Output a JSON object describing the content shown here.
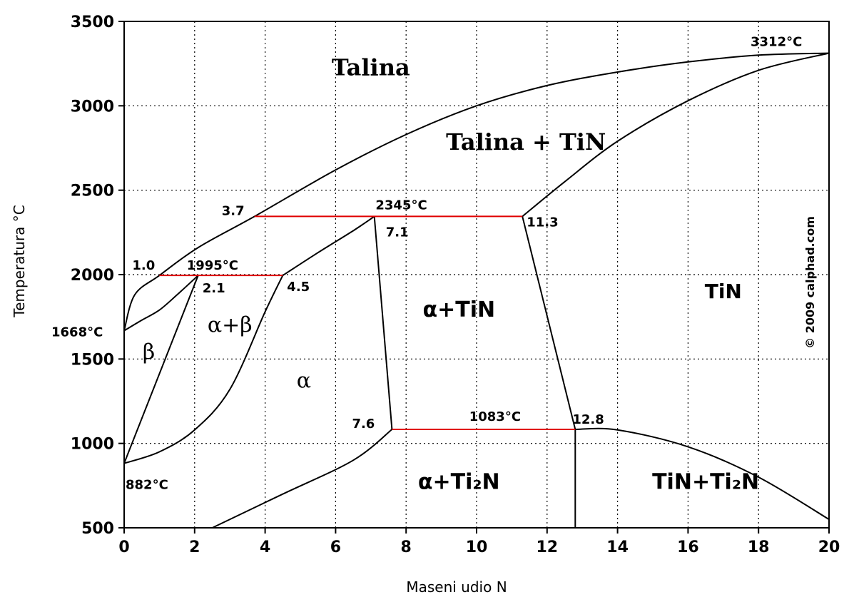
{
  "chart_data": {
    "type": "line",
    "xlabel": "Maseni udio N",
    "ylabel": "Temperatura °C",
    "xlim": [
      0,
      20
    ],
    "ylim": [
      500,
      3500
    ],
    "x_ticks": [
      0,
      2,
      4,
      6,
      8,
      10,
      12,
      14,
      16,
      18,
      20
    ],
    "y_ticks": [
      500,
      1000,
      1500,
      2000,
      2500,
      3000,
      3500
    ],
    "grid": true,
    "copyright": "© 2009 calphad.com",
    "phase_boundaries": [
      {
        "x": [
          0,
          0.3,
          1.0,
          2.1,
          3.7,
          6.0,
          8.0,
          10.0,
          12.0,
          14.0,
          16.0,
          18.0,
          20.0
        ],
        "y": [
          1668,
          1880,
          1995,
          2160,
          2345,
          2620,
          2830,
          3000,
          3120,
          3200,
          3260,
          3300,
          3312
        ]
      },
      {
        "x": [
          11.3,
          12.5,
          14.0,
          16.0,
          18.0,
          20.0
        ],
        "y": [
          2345,
          2550,
          2790,
          3030,
          3210,
          3312
        ]
      },
      {
        "x": [
          0,
          0.5,
          1.0,
          1.5,
          2.1
        ],
        "y": [
          1668,
          1730,
          1790,
          1880,
          1995
        ]
      },
      {
        "x": [
          0,
          2.1
        ],
        "y": [
          882,
          1995
        ]
      },
      {
        "x": [
          0,
          1.0,
          2.0,
          3.0,
          4.0,
          4.5
        ],
        "y": [
          882,
          950,
          1080,
          1320,
          1780,
          1995
        ]
      },
      {
        "x": [
          4.5,
          5.5,
          6.5,
          7.1
        ],
        "y": [
          1995,
          2130,
          2260,
          2345
        ]
      },
      {
        "x": [
          7.1,
          7.6
        ],
        "y": [
          2345,
          1083
        ]
      },
      {
        "x": [
          11.3,
          12.8
        ],
        "y": [
          2345,
          1083
        ]
      },
      {
        "x": [
          2.5,
          4.5,
          6.5,
          7.6
        ],
        "y": [
          500,
          700,
          900,
          1083
        ]
      },
      {
        "x": [
          12.8,
          14.0,
          16.0,
          18.0,
          20.0
        ],
        "y": [
          1083,
          1080,
          980,
          800,
          550
        ]
      },
      {
        "x": [
          12.8,
          12.8
        ],
        "y": [
          1083,
          500
        ]
      }
    ],
    "isotherms": [
      {
        "label": "1995°C",
        "x": [
          1.0,
          4.5
        ],
        "y": 1995,
        "color": "#e00000"
      },
      {
        "label": "2345°C",
        "x": [
          3.7,
          11.3
        ],
        "y": 2345,
        "color": "#e00000"
      },
      {
        "label": "1083°C",
        "x": [
          7.6,
          12.8
        ],
        "y": 1083,
        "color": "#e00000"
      }
    ],
    "point_labels": [
      {
        "text": "1668°C",
        "x": 0,
        "y": 1668
      },
      {
        "text": "882°C",
        "x": 0,
        "y": 882
      },
      {
        "text": "3312°C",
        "x": 20,
        "y": 3312
      },
      {
        "text": "1.0",
        "x": 1.0,
        "y": 1995
      },
      {
        "text": "2.1",
        "x": 2.1,
        "y": 1995
      },
      {
        "text": "4.5",
        "x": 4.5,
        "y": 1995
      },
      {
        "text": "3.7",
        "x": 3.7,
        "y": 2345
      },
      {
        "text": "7.1",
        "x": 7.1,
        "y": 2345
      },
      {
        "text": "11.3",
        "x": 11.3,
        "y": 2345
      },
      {
        "text": "7.6",
        "x": 7.6,
        "y": 1083
      },
      {
        "text": "12.8",
        "x": 12.8,
        "y": 1083
      }
    ],
    "regions": [
      {
        "text": "Talina",
        "x": 7.0,
        "y": 3180
      },
      {
        "text": "Talina + TiN",
        "x": 11.4,
        "y": 2740
      },
      {
        "text": "α+β",
        "x": 3.0,
        "y": 1660
      },
      {
        "text": "β",
        "x": 0.7,
        "y": 1500
      },
      {
        "text": "α",
        "x": 5.1,
        "y": 1330
      },
      {
        "text": "α+TiN",
        "x": 9.5,
        "y": 1750
      },
      {
        "text": "TiN",
        "x": 17.0,
        "y": 1860
      },
      {
        "text": "α+Ti₂N",
        "x": 9.5,
        "y": 730
      },
      {
        "text": "TiN+Ti₂N",
        "x": 16.5,
        "y": 730
      }
    ]
  }
}
